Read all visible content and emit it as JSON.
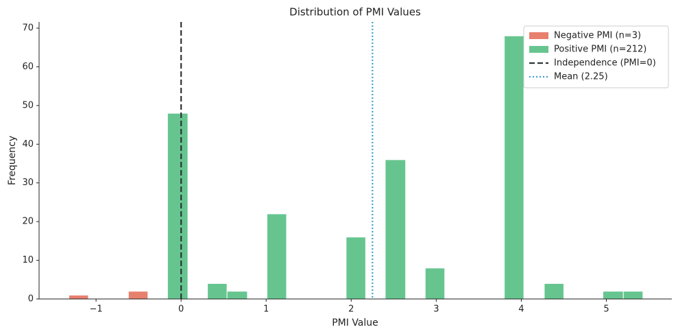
{
  "chart_data": {
    "type": "histogram",
    "title": "Distribution of PMI Values",
    "x_label": "PMI Value",
    "y_label": "Frequency",
    "bins": [
      -1.32,
      -1.09,
      -0.85,
      -0.62,
      -0.39,
      -0.16,
      0.08,
      0.31,
      0.54,
      0.78,
      1.01,
      1.24,
      1.47,
      1.71,
      1.94,
      2.17,
      2.4,
      2.64,
      2.87,
      3.1,
      3.34,
      3.57,
      3.8,
      4.03,
      4.27,
      4.5,
      4.73,
      4.96,
      5.2,
      5.43
    ],
    "series": [
      {
        "name": "Negative PMI (n=3)",
        "color": "#e8806e",
        "values": [
          1,
          0,
          0,
          2,
          0,
          0,
          0,
          0,
          0,
          0,
          0,
          0,
          0,
          0,
          0,
          0,
          0,
          0,
          0,
          0,
          0,
          0,
          0,
          0,
          0,
          0,
          0,
          0,
          0
        ]
      },
      {
        "name": "Positive PMI (n=212)",
        "color": "#66c58f",
        "values": [
          0,
          0,
          0,
          0,
          0,
          48,
          0,
          4,
          2,
          0,
          22,
          0,
          0,
          0,
          16,
          0,
          36,
          0,
          8,
          0,
          0,
          0,
          68,
          0,
          4,
          0,
          0,
          2,
          2
        ]
      }
    ],
    "vlines": [
      {
        "name": "Independence (PMI=0)",
        "x": 0,
        "color": "#2d3436",
        "style": "dashed"
      },
      {
        "name": "Mean (2.25)",
        "x": 2.25,
        "color": "#3a9fcf",
        "style": "dotted"
      }
    ],
    "xlim": [
      -1.67,
      5.77
    ],
    "ylim": [
      0,
      71.6
    ],
    "xticks": [
      {
        "value": -1,
        "label": "−1"
      },
      0,
      1,
      2,
      3,
      4,
      5
    ],
    "yticks": [
      0,
      10,
      20,
      30,
      40,
      50,
      60,
      70
    ],
    "legend": "upper right"
  }
}
